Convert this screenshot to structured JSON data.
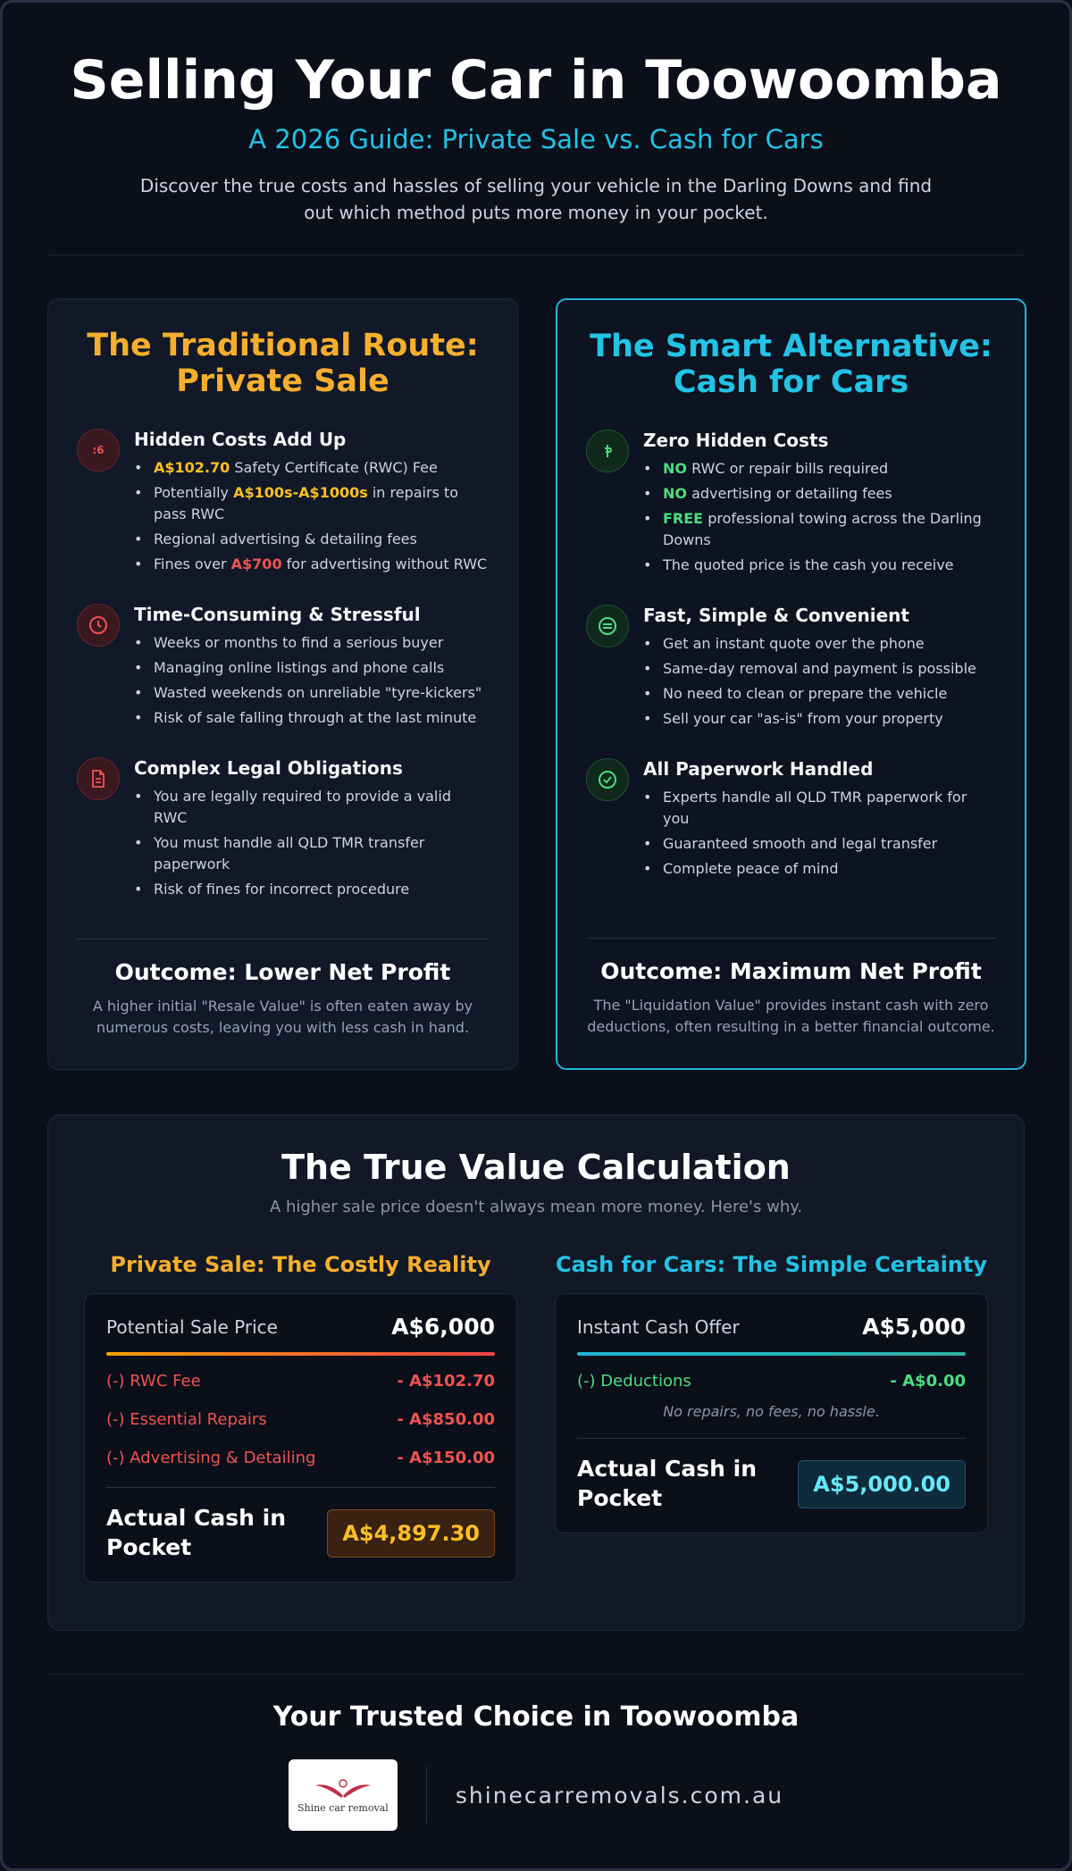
{
  "header": {
    "title": "Selling Your Car in Toowoomba",
    "subtitle": "A 2026 Guide: Private Sale vs. Cash for Cars",
    "intro": "Discover the true costs and hassles of selling your vehicle in the Darling Downs and find out which method puts more money in your pocket."
  },
  "private": {
    "title": "The Traditional Route: Private Sale",
    "sections": [
      {
        "heading": "Hidden Costs Add Up",
        "items": [
          [
            {
              "em": "A$102.70"
            },
            " Safety Certificate (RWC) Fee"
          ],
          [
            "Potentially ",
            {
              "em": "A$100s-A$1000s"
            },
            " in repairs to pass RWC"
          ],
          [
            "Regional advertising & detailing fees"
          ],
          [
            "Fines over ",
            {
              "bad": "A$700"
            },
            " for advertising without RWC"
          ]
        ]
      },
      {
        "heading": "Time-Consuming & Stressful",
        "items": [
          [
            "Weeks or months to find a serious buyer"
          ],
          [
            "Managing online listings and phone calls"
          ],
          [
            "Wasted weekends on unreliable \"tyre-kickers\""
          ],
          [
            "Risk of sale falling through at the last minute"
          ]
        ]
      },
      {
        "heading": "Complex Legal Obligations",
        "items": [
          [
            "You are legally required to provide a valid RWC"
          ],
          [
            "You must handle all QLD TMR transfer paperwork"
          ],
          [
            "Risk of fines for incorrect procedure"
          ]
        ]
      }
    ],
    "outcome_title": "Outcome: Lower Net Profit",
    "outcome_text": "A higher initial \"Resale Value\" is often eaten away by numerous costs, leaving you with less cash in hand."
  },
  "cash": {
    "title": "The Smart Alternative: Cash for Cars",
    "sections": [
      {
        "heading": "Zero Hidden Costs",
        "items": [
          [
            {
              "good": "NO"
            },
            " RWC or repair bills required"
          ],
          [
            {
              "good": "NO"
            },
            " advertising or detailing fees"
          ],
          [
            {
              "good": "FREE"
            },
            " professional towing across the Darling Downs"
          ],
          [
            "The quoted price is the cash you receive"
          ]
        ]
      },
      {
        "heading": "Fast, Simple & Convenient",
        "items": [
          [
            "Get an instant quote over the phone"
          ],
          [
            "Same-day removal and payment is possible"
          ],
          [
            "No need to clean or prepare the vehicle"
          ],
          [
            "Sell your car \"as-is\" from your property"
          ]
        ]
      },
      {
        "heading": "All Paperwork Handled",
        "items": [
          [
            "Experts handle all QLD TMR paperwork for you"
          ],
          [
            "Guaranteed smooth and legal transfer"
          ],
          [
            "Complete peace of mind"
          ]
        ]
      }
    ],
    "outcome_title": "Outcome: Maximum Net Profit",
    "outcome_text": "The \"Liquidation Value\" provides instant cash with zero deductions, often resulting in a better financial outcome."
  },
  "calc": {
    "title": "The True Value Calculation",
    "subtitle": "A higher sale price doesn't always mean more money. Here's why.",
    "private": {
      "heading": "Private Sale: The Costly Reality",
      "price_label": "Potential Sale Price",
      "price": "A$6,000",
      "rows": [
        {
          "label": "(-) RWC Fee",
          "amount": "- A$102.70"
        },
        {
          "label": "(-) Essential Repairs",
          "amount": "- A$850.00"
        },
        {
          "label": "(-) Advertising & Detailing",
          "amount": "- A$150.00"
        }
      ],
      "total_label": "Actual Cash in Pocket",
      "total": "A$4,897.30"
    },
    "cash": {
      "heading": "Cash for Cars: The Simple Certainty",
      "price_label": "Instant Cash Offer",
      "price": "A$5,000",
      "rows": [
        {
          "label": "(-) Deductions",
          "amount": "- A$0.00"
        }
      ],
      "note": "No repairs, no fees, no hassle.",
      "total_label": "Actual Cash in Pocket",
      "total": "A$5,000.00"
    }
  },
  "footer": {
    "title": "Your Trusted Choice in Toowoomba",
    "logo_text": "Shine car removal",
    "url": "shinecarremovals.com.au"
  }
}
